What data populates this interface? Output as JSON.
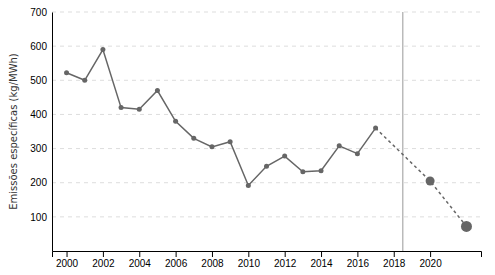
{
  "chart_data": {
    "type": "line",
    "ylabel": "Emissões específicas (kg/MWh)",
    "xlim": [
      1999.2,
      2022.8
    ],
    "ylim": [
      0,
      700
    ],
    "xticks": [
      2000,
      2002,
      2004,
      2006,
      2008,
      2010,
      2012,
      2014,
      2016,
      2018,
      2020
    ],
    "yticks": [
      100,
      200,
      300,
      400,
      500,
      600,
      700
    ],
    "grid": true,
    "vline_x": 2018.5,
    "series": [
      {
        "x": [
          2000,
          2001,
          2002,
          2003,
          2004,
          2005,
          2006,
          2007,
          2008,
          2009,
          2010,
          2011,
          2012,
          2013,
          2014,
          2015,
          2016,
          2017
        ],
        "values": [
          522,
          500,
          590,
          420,
          415,
          470,
          380,
          330,
          305,
          320,
          192,
          248,
          278,
          232,
          235,
          308,
          285,
          360
        ],
        "color": "#666666",
        "line_style": "solid",
        "marker": "circle"
      },
      {
        "x": [
          2017,
          2020,
          2022
        ],
        "values": [
          360,
          205,
          72
        ],
        "color": "#666666",
        "line_style": "dotted",
        "marker": "circle"
      }
    ]
  }
}
